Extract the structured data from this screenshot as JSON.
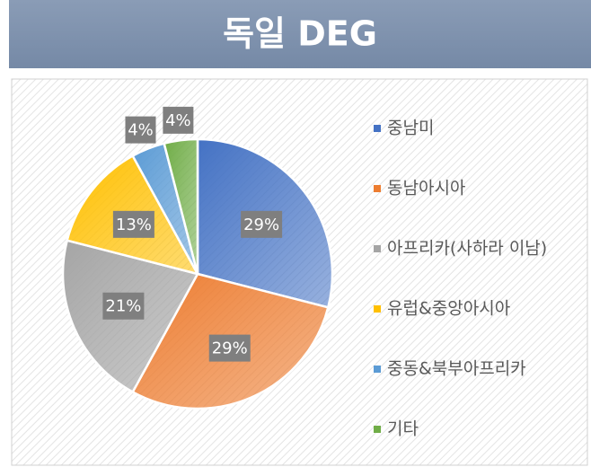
{
  "chart_data": {
    "type": "pie",
    "title": "독일 DEG",
    "categories": [
      "중남미",
      "동남아시아",
      "아프리카(사하라 이남)",
      "유럽&중앙아시아",
      "중동&북부아프리카",
      "기타"
    ],
    "values": [
      29,
      29,
      21,
      13,
      4,
      4
    ],
    "value_labels": [
      "29%",
      "29%",
      "21%",
      "13%",
      "4%",
      "4%"
    ],
    "colors": [
      "#4472c4",
      "#ed7d31",
      "#a5a5a5",
      "#ffc000",
      "#5b9bd5",
      "#70ad47"
    ],
    "legend": "right"
  }
}
